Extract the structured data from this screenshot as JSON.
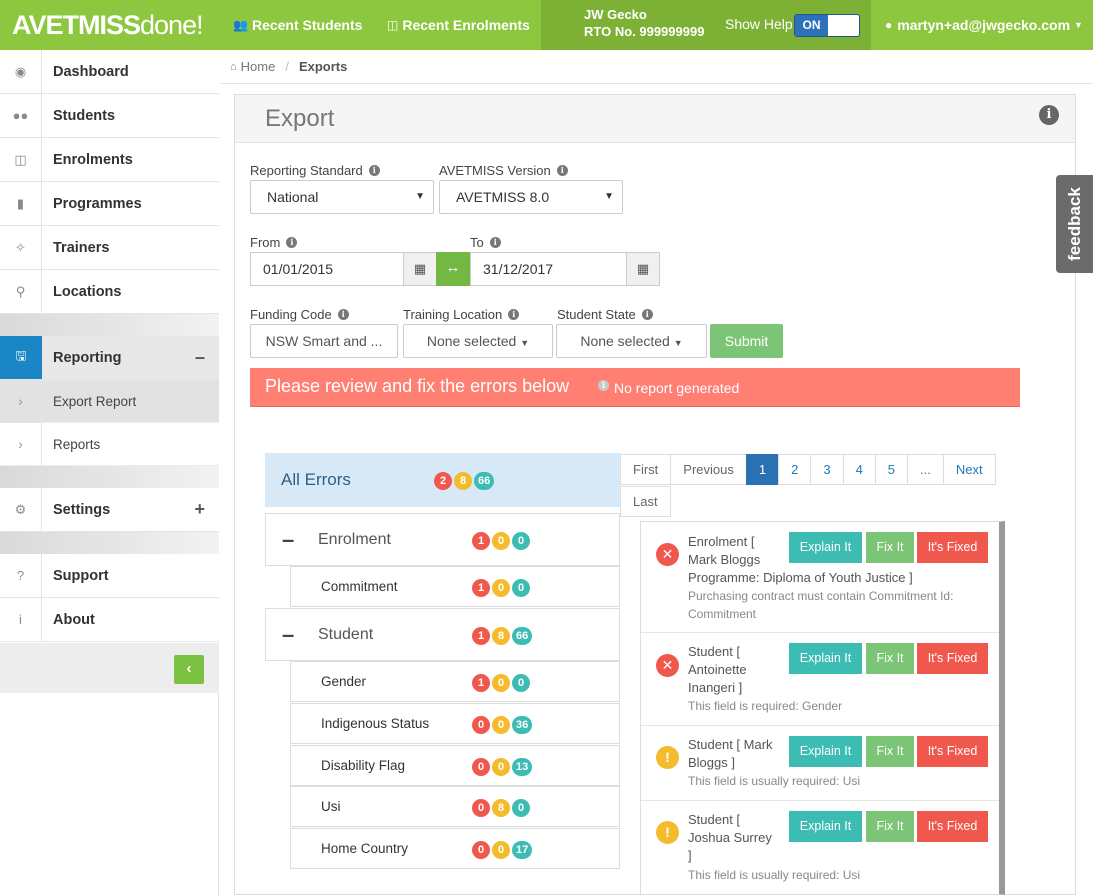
{
  "brand": {
    "logo_main": "AVETMISS",
    "logo_done": "done!"
  },
  "topnav": {
    "recent_students": "Recent Students",
    "recent_enrolments": "Recent Enrolments",
    "org_name": "JW Gecko",
    "rto_no": "RTO No. 999999999",
    "show_help_label": "Show Help",
    "toggle_on": "ON",
    "user": "martyn+ad@jwgecko.com"
  },
  "sidebar": {
    "dashboard": "Dashboard",
    "students": "Students",
    "enrolments": "Enrolments",
    "programmes": "Programmes",
    "trainers": "Trainers",
    "locations": "Locations",
    "reporting": "Reporting",
    "export_report": "Export Report",
    "reports": "Reports",
    "settings": "Settings",
    "support": "Support",
    "about": "About"
  },
  "breadcrumb": {
    "home": "Home",
    "current": "Exports"
  },
  "panel": {
    "title": "Export"
  },
  "form": {
    "reporting_standard_label": "Reporting Standard",
    "reporting_standard_value": "National",
    "avetmiss_version_label": "AVETMISS Version",
    "avetmiss_version_value": "AVETMISS 8.0",
    "from_label": "From",
    "from_value": "01/01/2015",
    "to_label": "To",
    "to_value": "31/12/2017",
    "funding_code_label": "Funding Code",
    "funding_code_value": "NSW Smart and ...",
    "training_location_label": "Training Location",
    "training_location_value": "None selected",
    "student_state_label": "Student State",
    "student_state_value": "None selected",
    "submit": "Submit"
  },
  "alert": {
    "message": "Please review and fix the errors below",
    "sub": "No report generated"
  },
  "tree": {
    "all": {
      "label": "All Errors",
      "errors": "2",
      "warnings": "8",
      "info": "66"
    },
    "enrolment": {
      "label": "Enrolment",
      "errors": "1",
      "warnings": "0",
      "info": "0"
    },
    "commitment": {
      "label": "Commitment",
      "errors": "1",
      "warnings": "0",
      "info": "0"
    },
    "student": {
      "label": "Student",
      "errors": "1",
      "warnings": "8",
      "info": "66"
    },
    "gender": {
      "label": "Gender",
      "errors": "1",
      "warnings": "0",
      "info": "0"
    },
    "indigenous": {
      "label": "Indigenous Status",
      "errors": "0",
      "warnings": "0",
      "info": "36"
    },
    "disability": {
      "label": "Disability Flag",
      "errors": "0",
      "warnings": "0",
      "info": "13"
    },
    "usi": {
      "label": "Usi",
      "errors": "0",
      "warnings": "8",
      "info": "0"
    },
    "home_country": {
      "label": "Home Country",
      "errors": "0",
      "warnings": "0",
      "info": "17"
    }
  },
  "pagination": {
    "first": "First",
    "previous": "Previous",
    "pages": [
      "1",
      "2",
      "3",
      "4",
      "5",
      "..."
    ],
    "next": "Next",
    "last": "Last"
  },
  "errors": [
    {
      "line1": "Enrolment [",
      "line2": "Mark Bloggs",
      "line3": "Programme: Diploma of Youth Justice ]",
      "desc1": "Purchasing contract must contain Commitment Id:",
      "desc2": "Commitment"
    },
    {
      "line1": "Student [",
      "line2": "Antoinette",
      "line3": "Inangeri ]",
      "desc1": "This field is required: Gender"
    },
    {
      "line1": "Student [ Mark",
      "line2": "Bloggs ]",
      "desc1": "This field is usually required: Usi"
    },
    {
      "line1": "Student [",
      "line2": "Joshua Surrey",
      "line3": "]",
      "desc1": "This field is usually required: Usi"
    }
  ],
  "buttons": {
    "explain": "Explain It",
    "fix": "Fix It",
    "fixed": "It's Fixed"
  },
  "feedback": "feedback"
}
